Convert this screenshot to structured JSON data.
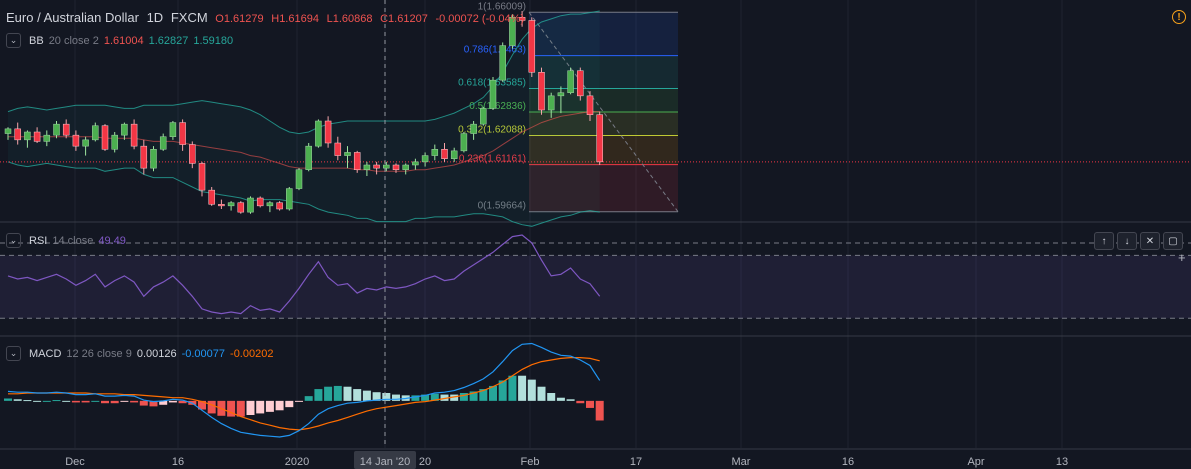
{
  "header": {
    "pair": "Euro / Australian Dollar",
    "interval": "1D",
    "exchange": "FXCM",
    "open": "O1.61279",
    "high": "H1.61694",
    "low": "L1.60868",
    "close": "C1.61207",
    "change": "-0.00072 (-0.04%)"
  },
  "colors": {
    "background": "#131722",
    "up": "#26a69a",
    "down": "#ef5350",
    "candle_up": "#4caf50",
    "candle_down": "#f23645",
    "rsi_line": "#7e57c2",
    "macd_line": "#2196f3",
    "signal_line": "#ff6d00",
    "alert": "#f7a21b"
  },
  "indicators": {
    "bb": {
      "name": "BB",
      "params": "20 close 2",
      "v1": "1.61004",
      "v2": "1.62827",
      "v3": "1.59180"
    },
    "rsi": {
      "name": "RSI",
      "params": "14 close",
      "value": "49.49"
    },
    "macd": {
      "name": "MACD",
      "params": "12 26 close 9",
      "v1": "0.00126",
      "v2": "-0.00077",
      "v3": "-0.00202"
    }
  },
  "pane_buttons": [
    "↑",
    "↓",
    "✕",
    "▢"
  ],
  "chart_data": {
    "type": "candlestick",
    "date_axis": [
      "Dec",
      "16",
      "2020",
      "14 Jan '20",
      "20",
      "Feb",
      "17",
      "Mar",
      "16",
      "Apr",
      "13"
    ],
    "crosshair_date": "14 Jan '20",
    "fib_levels": [
      {
        "label": "1(1.66009)",
        "price": 1.66009,
        "color": "#787b86"
      },
      {
        "label": "0.786(1.6463)",
        "price": 1.6463,
        "color": "#2962ff"
      },
      {
        "label": "0.618(1.63585)",
        "price": 1.63585,
        "color": "#26a69a"
      },
      {
        "label": "0.5(1.62836)",
        "price": 1.62836,
        "color": "#4caf50"
      },
      {
        "label": "0.382(1.62088)",
        "price": 1.62088,
        "color": "#c0ca33"
      },
      {
        "label": "0.236(1.61161)",
        "price": 1.61161,
        "color": "#f23645"
      },
      {
        "label": "0(1.59664)",
        "price": 1.59664,
        "color": "#787b86"
      }
    ],
    "price_ylim": [
      1.594,
      1.664
    ],
    "candles": [
      [
        1.6215,
        1.6235,
        1.6195,
        1.623
      ],
      [
        1.623,
        1.625,
        1.618,
        1.6195
      ],
      [
        1.6195,
        1.6225,
        1.617,
        1.622
      ],
      [
        1.622,
        1.6235,
        1.6185,
        1.619
      ],
      [
        1.619,
        1.6225,
        1.6175,
        1.621
      ],
      [
        1.621,
        1.6255,
        1.62,
        1.6245
      ],
      [
        1.6245,
        1.626,
        1.62,
        1.621
      ],
      [
        1.621,
        1.6225,
        1.616,
        1.6175
      ],
      [
        1.6175,
        1.6205,
        1.6145,
        1.6195
      ],
      [
        1.6195,
        1.625,
        1.619,
        1.624
      ],
      [
        1.624,
        1.6245,
        1.616,
        1.6165
      ],
      [
        1.6165,
        1.622,
        1.6155,
        1.621
      ],
      [
        1.621,
        1.625,
        1.6195,
        1.6245
      ],
      [
        1.6245,
        1.626,
        1.6165,
        1.6175
      ],
      [
        1.6175,
        1.6195,
        1.6085,
        1.6105
      ],
      [
        1.6105,
        1.6175,
        1.6095,
        1.6165
      ],
      [
        1.6165,
        1.6215,
        1.616,
        1.6205
      ],
      [
        1.6205,
        1.6255,
        1.6195,
        1.625
      ],
      [
        1.625,
        1.626,
        1.616,
        1.618
      ],
      [
        1.618,
        1.619,
        1.6105,
        1.612
      ],
      [
        1.612,
        1.6125,
        1.6015,
        1.6035
      ],
      [
        1.6035,
        1.6045,
        1.5985,
        1.599
      ],
      [
        1.599,
        1.6005,
        1.5975,
        1.5985
      ],
      [
        1.5985,
        1.6,
        1.597,
        1.5995
      ],
      [
        1.5995,
        1.6,
        1.596,
        1.5965
      ],
      [
        1.5965,
        1.6015,
        1.596,
        1.601
      ],
      [
        1.601,
        1.6015,
        1.598,
        1.5985
      ],
      [
        1.5985,
        1.6,
        1.5965,
        1.5995
      ],
      [
        1.5995,
        1.6,
        1.597,
        1.5975
      ],
      [
        1.5975,
        1.6045,
        1.597,
        1.604
      ],
      [
        1.604,
        1.6105,
        1.6035,
        1.61
      ],
      [
        1.61,
        1.6185,
        1.6095,
        1.6175
      ],
      [
        1.6175,
        1.626,
        1.617,
        1.6255
      ],
      [
        1.6255,
        1.627,
        1.617,
        1.6185
      ],
      [
        1.6185,
        1.6205,
        1.613,
        1.6145
      ],
      [
        1.6145,
        1.6175,
        1.6105,
        1.6155
      ],
      [
        1.6155,
        1.616,
        1.609,
        1.61
      ],
      [
        1.61,
        1.6125,
        1.608,
        1.6115
      ],
      [
        1.6115,
        1.6125,
        1.6085,
        1.6105
      ],
      [
        1.6105,
        1.6125,
        1.6095,
        1.6115
      ],
      [
        1.6115,
        1.612,
        1.609,
        1.61
      ],
      [
        1.61,
        1.612,
        1.6085,
        1.6115
      ],
      [
        1.6115,
        1.6135,
        1.61,
        1.6125
      ],
      [
        1.6125,
        1.6155,
        1.611,
        1.6145
      ],
      [
        1.6145,
        1.618,
        1.613,
        1.6165
      ],
      [
        1.6165,
        1.6185,
        1.6125,
        1.6135
      ],
      [
        1.6135,
        1.617,
        1.6125,
        1.616
      ],
      [
        1.616,
        1.622,
        1.6155,
        1.6215
      ],
      [
        1.6215,
        1.6255,
        1.6195,
        1.6245
      ],
      [
        1.6245,
        1.63,
        1.624,
        1.6295
      ],
      [
        1.6295,
        1.6395,
        1.629,
        1.6385
      ],
      [
        1.6385,
        1.6505,
        1.638,
        1.6495
      ],
      [
        1.6495,
        1.6595,
        1.6485,
        1.6585
      ],
      [
        1.6585,
        1.6605,
        1.6555,
        1.6575
      ],
      [
        1.6575,
        1.6585,
        1.6395,
        1.641
      ],
      [
        1.641,
        1.6425,
        1.6275,
        1.629
      ],
      [
        1.629,
        1.6345,
        1.6265,
        1.6335
      ],
      [
        1.6335,
        1.6365,
        1.628,
        1.6345
      ],
      [
        1.6345,
        1.6425,
        1.634,
        1.6415
      ],
      [
        1.6415,
        1.6425,
        1.632,
        1.6335
      ],
      [
        1.6335,
        1.635,
        1.6255,
        1.6275
      ],
      [
        1.6275,
        1.6285,
        1.6115,
        1.6125
      ]
    ],
    "bb_upper": [
      1.6285,
      1.6295,
      1.63,
      1.6295,
      1.629,
      1.6295,
      1.63,
      1.6305,
      1.6305,
      1.6305,
      1.6305,
      1.63,
      1.6295,
      1.6295,
      1.6305,
      1.6305,
      1.6305,
      1.6305,
      1.631,
      1.6315,
      1.632,
      1.6315,
      1.631,
      1.6305,
      1.63,
      1.629,
      1.6275,
      1.6255,
      1.6235,
      1.622,
      1.6215,
      1.622,
      1.6235,
      1.6245,
      1.625,
      1.6255,
      1.6255,
      1.6255,
      1.6255,
      1.6255,
      1.6255,
      1.6255,
      1.6255,
      1.6255,
      1.626,
      1.627,
      1.628,
      1.6295,
      1.631,
      1.633,
      1.6365,
      1.641,
      1.6465,
      1.6515,
      1.655,
      1.657,
      1.658,
      1.659,
      1.6595,
      1.6595,
      1.66,
      1.6605
    ],
    "bb_basis": [
      1.6205,
      1.6205,
      1.6205,
      1.6205,
      1.6205,
      1.6205,
      1.6205,
      1.6205,
      1.6205,
      1.6205,
      1.62,
      1.62,
      1.62,
      1.62,
      1.6195,
      1.619,
      1.619,
      1.619,
      1.6185,
      1.618,
      1.6175,
      1.617,
      1.6165,
      1.616,
      1.6155,
      1.6145,
      1.614,
      1.613,
      1.612,
      1.611,
      1.6105,
      1.6105,
      1.6105,
      1.6105,
      1.6105,
      1.6105,
      1.61,
      1.61,
      1.6095,
      1.6095,
      1.6095,
      1.6095,
      1.61,
      1.61,
      1.6105,
      1.611,
      1.6115,
      1.6125,
      1.6135,
      1.6145,
      1.616,
      1.618,
      1.62,
      1.622,
      1.6235,
      1.625,
      1.626,
      1.627,
      1.6275,
      1.628,
      1.6285,
      1.6285
    ],
    "bb_lower": [
      1.6125,
      1.6115,
      1.611,
      1.6115,
      1.612,
      1.6115,
      1.611,
      1.6105,
      1.6105,
      1.6105,
      1.6095,
      1.61,
      1.6105,
      1.6105,
      1.6085,
      1.6075,
      1.6075,
      1.6075,
      1.606,
      1.6045,
      1.603,
      1.6025,
      1.602,
      1.6015,
      1.601,
      1.6,
      1.6005,
      1.6005,
      1.6005,
      1.6,
      1.5995,
      1.599,
      1.5975,
      1.5965,
      1.596,
      1.5955,
      1.5945,
      1.5945,
      1.5935,
      1.5935,
      1.5935,
      1.5935,
      1.5945,
      1.5945,
      1.595,
      1.595,
      1.595,
      1.5955,
      1.596,
      1.596,
      1.5955,
      1.595,
      1.5935,
      1.5925,
      1.592,
      1.593,
      1.594,
      1.595,
      1.5955,
      1.5965,
      1.597,
      1.5965
    ],
    "rsi_ylim": [
      20,
      90
    ],
    "rsi_bands": [
      70,
      30
    ],
    "rsi": [
      57,
      55,
      56,
      54,
      56,
      58,
      55,
      51,
      54,
      58,
      50,
      54,
      57,
      53,
      44,
      50,
      53,
      57,
      51,
      44,
      36,
      34,
      33,
      34,
      33,
      38,
      35,
      36,
      34,
      41,
      49,
      58,
      66,
      56,
      51,
      52,
      46,
      49,
      48,
      50,
      49,
      50,
      52,
      55,
      57,
      54,
      55,
      60,
      64,
      68,
      72,
      77,
      82,
      83,
      78,
      67,
      57,
      58,
      62,
      55,
      52,
      44
    ],
    "macd_ylim": [
      -0.006,
      0.008
    ],
    "macd": [
      0.0012,
      0.0011,
      0.0011,
      0.001,
      0.001,
      0.0011,
      0.001,
      0.0008,
      0.0008,
      0.0009,
      0.0006,
      0.0006,
      0.0007,
      0.0006,
      0.0001,
      -0.0001,
      0.0,
      0.0002,
      0.0001,
      -0.0003,
      -0.0012,
      -0.0021,
      -0.0029,
      -0.0035,
      -0.004,
      -0.0042,
      -0.0044,
      -0.0045,
      -0.0046,
      -0.0044,
      -0.0038,
      -0.0029,
      -0.0017,
      -0.001,
      -0.0006,
      -0.0003,
      -0.0002,
      0.0,
      0.0001,
      0.0002,
      0.0002,
      0.0003,
      0.0005,
      0.0007,
      0.001,
      0.0011,
      0.0013,
      0.0017,
      0.0022,
      0.0028,
      0.0037,
      0.005,
      0.0064,
      0.0072,
      0.0073,
      0.0068,
      0.0062,
      0.0058,
      0.0057,
      0.0052,
      0.0045,
      0.0026
    ],
    "signal": [
      0.0009,
      0.0009,
      0.001,
      0.001,
      0.001,
      0.001,
      0.001,
      0.001,
      0.001,
      0.0009,
      0.0009,
      0.0009,
      0.0008,
      0.0008,
      0.0007,
      0.0006,
      0.0005,
      0.0004,
      0.0004,
      0.0002,
      -0.0001,
      -0.0005,
      -0.001,
      -0.0015,
      -0.002,
      -0.0024,
      -0.0028,
      -0.0031,
      -0.0034,
      -0.0036,
      -0.0037,
      -0.0035,
      -0.0032,
      -0.0028,
      -0.0025,
      -0.0021,
      -0.0017,
      -0.0013,
      -0.001,
      -0.0008,
      -0.0006,
      -0.0004,
      -0.0002,
      -0.0001,
      0.0001,
      0.0003,
      0.0005,
      0.0007,
      0.001,
      0.0013,
      0.0018,
      0.0024,
      0.0032,
      0.004,
      0.0046,
      0.005,
      0.0052,
      0.0054,
      0.0055,
      0.0055,
      0.0054,
      0.0051
    ]
  }
}
